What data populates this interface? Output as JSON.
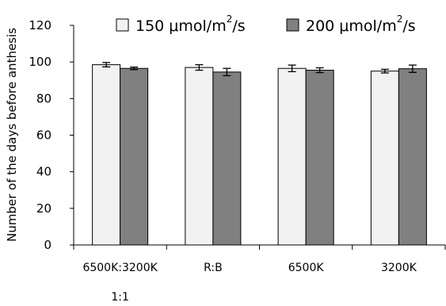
{
  "chart_data": {
    "type": "bar",
    "title": "",
    "xlabel": "",
    "ylabel": "Number of the days before anthesis",
    "ylim": [
      0,
      120
    ],
    "yticks": [
      0,
      20,
      40,
      60,
      80,
      100,
      120
    ],
    "grid": false,
    "legend_position": "top-right",
    "categories": [
      "6500K:3200K 1:1",
      "R:B",
      "6500K",
      "3200K"
    ],
    "category_lines": [
      [
        "6500K:3200K",
        "1:1"
      ],
      [
        "R:B"
      ],
      [
        "6500K"
      ],
      [
        "3200K"
      ]
    ],
    "series": [
      {
        "name_parts": [
          "150 μmol/m",
          "2",
          "/s"
        ],
        "color": "#f2f2f2",
        "values": [
          98.5,
          97.0,
          96.5,
          95.0
        ],
        "errors": [
          1.2,
          1.5,
          1.8,
          1.0
        ]
      },
      {
        "name_parts": [
          "200 μmol/m",
          "2",
          "/s"
        ],
        "color": "#808080",
        "values": [
          96.5,
          94.5,
          95.5,
          96.3
        ],
        "errors": [
          0.7,
          2.0,
          1.3,
          2.0
        ]
      }
    ]
  }
}
